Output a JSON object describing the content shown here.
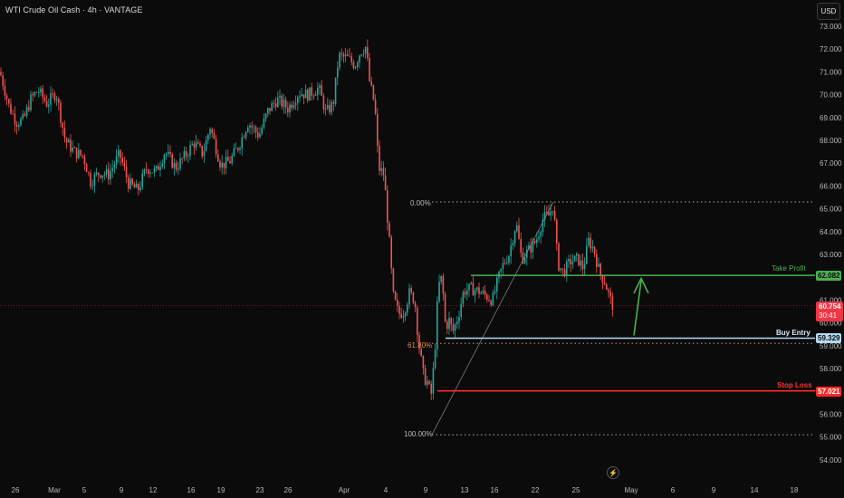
{
  "header": {
    "symbol_title": "WTI Crude Oil Cash · 4h · VANTAGE",
    "currency_button": "USD"
  },
  "price_axis": {
    "labels": [
      "73.000",
      "72.000",
      "71.000",
      "70.000",
      "69.000",
      "68.000",
      "67.000",
      "66.000",
      "65.000",
      "64.000",
      "63.000",
      "62.000",
      "61.000",
      "60.000",
      "59.000",
      "58.000",
      "57.000",
      "56.000",
      "55.000",
      "54.000"
    ]
  },
  "time_axis": {
    "labels": [
      "26",
      "Mar",
      "5",
      "9",
      "12",
      "16",
      "19",
      "23",
      "26",
      "Apr",
      "4",
      "9",
      "13",
      "16",
      "22",
      "25",
      "May",
      "6",
      "9",
      "14",
      "18"
    ]
  },
  "levels": {
    "take_profit": {
      "label": "Take Profit",
      "value": "62.082",
      "color": "#4caf50"
    },
    "buy_entry": {
      "label": "Buy Entry",
      "value": "59.329",
      "color": "#b3d9f2"
    },
    "stop_loss": {
      "label": "Stop Loss",
      "value": "57.021",
      "color": "#ff2a2a"
    },
    "current": {
      "value": "60.754",
      "countdown": "30:41",
      "color": "#f23645"
    }
  },
  "fib": {
    "level_0": "0.00%",
    "level_618": "61.80%",
    "level_100": "100.00%"
  },
  "icons": {
    "lightning": "lightning-icon"
  },
  "chart_data": {
    "type": "candlestick",
    "title": "WTI Crude Oil Cash · 4h · VANTAGE",
    "ylim": [
      54,
      73.4
    ],
    "segments": [
      {
        "from": "Feb 26",
        "to": "Apr 2",
        "range": [
          65.5,
          72.4
        ]
      },
      {
        "from": "Apr 2",
        "to": "Apr 9",
        "move_to": 55.2
      },
      {
        "from": "Apr 9",
        "to": "Apr 23",
        "move_to": 65.2
      },
      {
        "from": "Apr 23",
        "to": "Apr 29",
        "move_to": 60.75
      }
    ],
    "horizontal_levels": [
      {
        "name": "Take Profit",
        "value": 62.082
      },
      {
        "name": "Buy Entry",
        "value": 59.329
      },
      {
        "name": "Stop Loss",
        "value": 57.021
      },
      {
        "name": "0.00%",
        "value": 65.3
      },
      {
        "name": "61.80%",
        "value": 59.1
      },
      {
        "name": "100.00%",
        "value": 55.1
      }
    ]
  }
}
